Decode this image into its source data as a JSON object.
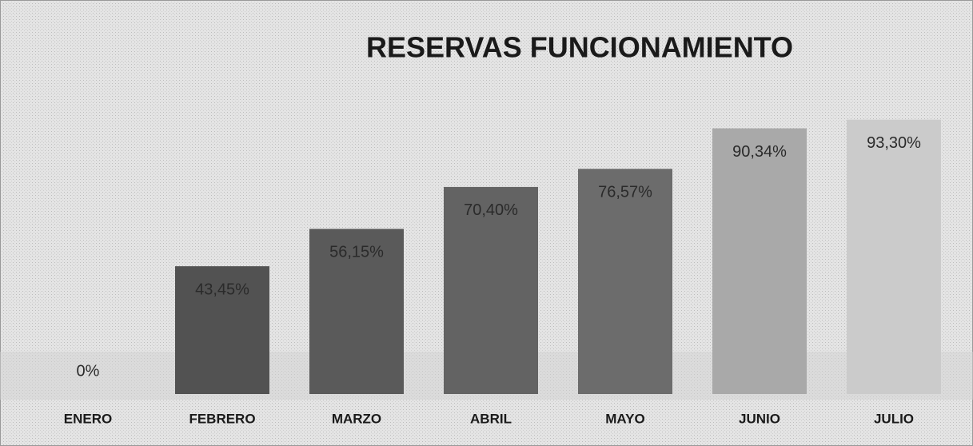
{
  "chart_data": {
    "type": "bar",
    "title": "RESERVAS FUNCIONAMIENTO",
    "categories": [
      "ENERO",
      "FEBRERO",
      "MARZO",
      "ABRIL",
      "MAYO",
      "JUNIO",
      "JULIO"
    ],
    "values": [
      0,
      43.45,
      56.15,
      70.4,
      76.57,
      90.34,
      93.3
    ],
    "value_labels": [
      "0%",
      "43,45%",
      "56,15%",
      "70,40%",
      "76,57%",
      "90,34%",
      "93,30%"
    ],
    "colors": [
      "#555555",
      "#525252",
      "#5a5a5a",
      "#636363",
      "#6c6c6c",
      "#a9a9a9",
      "#cbcbcb"
    ]
  }
}
